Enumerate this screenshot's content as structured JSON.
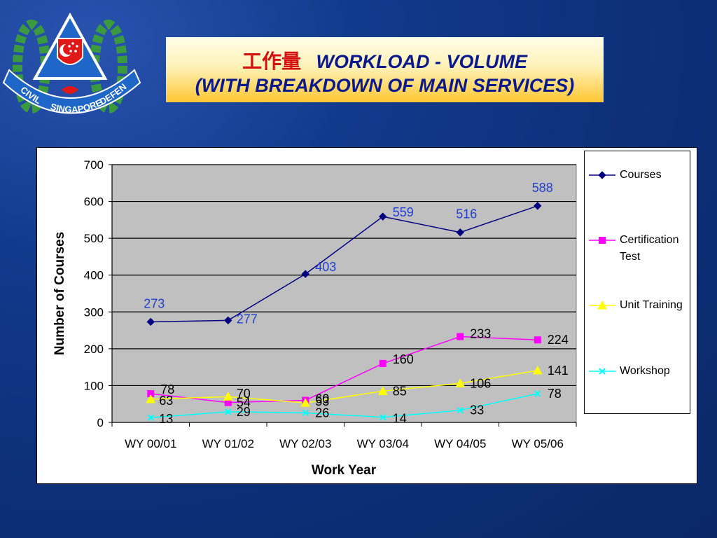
{
  "header": {
    "title_cn": "工作量",
    "title_en": "WORKLOAD - VOLUME",
    "subtitle": "(WITH BREAKDOWN OF MAIN SERVICES)"
  },
  "logo": {
    "text_left": "CIVIL",
    "text_center": "SINGAPORE",
    "text_right": "DEFENCE"
  },
  "chart_data": {
    "type": "line",
    "title": "",
    "xlabel": "Work Year",
    "ylabel": "Number of Courses",
    "ylim": [
      0,
      700
    ],
    "yticks": [
      0,
      100,
      200,
      300,
      400,
      500,
      600,
      700
    ],
    "grid": true,
    "legend_position": "right",
    "categories": [
      "WY 00/01",
      "WY 01/02",
      "WY 02/03",
      "WY 03/04",
      "WY 04/05",
      "WY 05/06"
    ],
    "series": [
      {
        "name": "Courses",
        "values": [
          273,
          277,
          403,
          559,
          516,
          588
        ],
        "color": "#000080",
        "marker": "diamond",
        "label_color": "#1f3fd6"
      },
      {
        "name": "Certification Test",
        "values": [
          78,
          54,
          60,
          160,
          233,
          224
        ],
        "color": "#ff00ff",
        "marker": "square",
        "label_color": "#000000"
      },
      {
        "name": "Unit Training",
        "values": [
          63,
          70,
          53,
          85,
          106,
          141
        ],
        "color": "#ffff00",
        "marker": "triangle",
        "label_color": "#000000"
      },
      {
        "name": "Workshop",
        "values": [
          13,
          29,
          26,
          14,
          33,
          78
        ],
        "color": "#00ffff",
        "marker": "x",
        "label_color": "#000000"
      }
    ]
  }
}
